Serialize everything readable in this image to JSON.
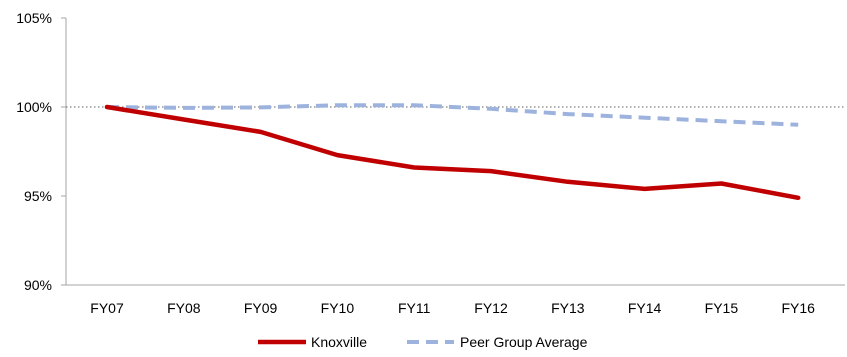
{
  "chart_data": {
    "type": "line",
    "title": "",
    "xlabel": "",
    "ylabel": "",
    "categories": [
      "FY07",
      "FY08",
      "FY09",
      "FY10",
      "FY11",
      "FY12",
      "FY13",
      "FY14",
      "FY15",
      "FY16"
    ],
    "ylim": [
      90,
      105
    ],
    "yticks": [
      90,
      95,
      100,
      105
    ],
    "ytick_labels": [
      "90%",
      "95%",
      "100%",
      "105%"
    ],
    "reference_line": 100,
    "grid": false,
    "legend_position": "bottom",
    "series": [
      {
        "name": "Knoxville",
        "values": [
          100.0,
          99.3,
          98.6,
          97.3,
          96.6,
          96.4,
          95.8,
          95.4,
          95.7,
          94.9
        ],
        "color": "#c00000",
        "style": "solid"
      },
      {
        "name": "Peer Group Average",
        "values": [
          100.0,
          99.95,
          99.98,
          100.1,
          100.1,
          99.9,
          99.6,
          99.4,
          99.2,
          99.0
        ],
        "color": "#9db3de",
        "style": "dashed"
      }
    ]
  }
}
